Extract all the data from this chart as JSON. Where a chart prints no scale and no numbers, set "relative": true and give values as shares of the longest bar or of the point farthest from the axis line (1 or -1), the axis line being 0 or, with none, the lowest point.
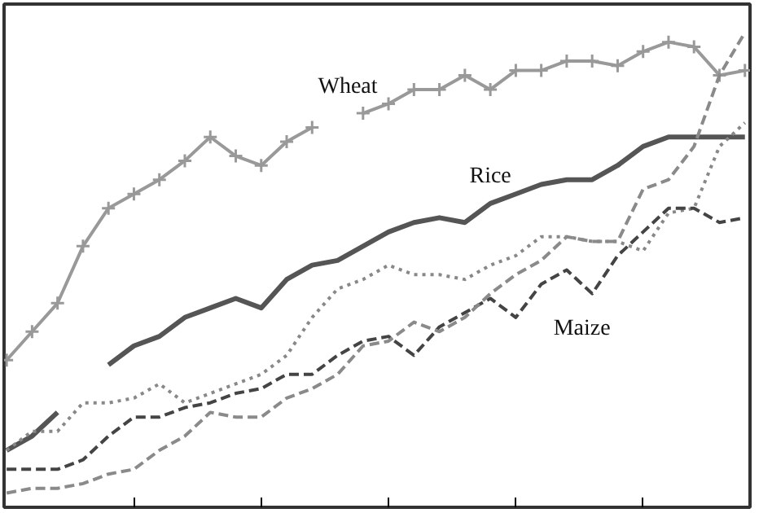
{
  "chart_data": {
    "type": "line",
    "relative": true,
    "categories": [
      null,
      null,
      null,
      null,
      null,
      null,
      null,
      null,
      null,
      null,
      null,
      null,
      null,
      null,
      null,
      null,
      null,
      null,
      null,
      null,
      null,
      null,
      null,
      null,
      null,
      null,
      null,
      null,
      null,
      null
    ],
    "series": [
      {
        "name": "Wheat",
        "color": "#999999",
        "marker": "cross",
        "line_style": "solid",
        "values": [
          0.31,
          0.37,
          0.43,
          0.55,
          0.63,
          0.66,
          0.69,
          0.73,
          0.78,
          0.74,
          0.72,
          0.77,
          0.8,
          null,
          0.83,
          0.85,
          0.88,
          0.88,
          0.91,
          0.88,
          0.92,
          0.92,
          0.94,
          0.94,
          0.93,
          0.96,
          0.98,
          0.97,
          0.91,
          0.92
        ]
      },
      {
        "name": "Rice",
        "color": "#555555",
        "line_style": "solid",
        "values": [
          0.12,
          0.15,
          0.2,
          null,
          0.3,
          0.34,
          0.36,
          0.4,
          0.42,
          0.44,
          0.42,
          0.48,
          0.51,
          0.52,
          0.55,
          0.58,
          0.6,
          0.61,
          0.6,
          0.64,
          0.66,
          0.68,
          0.69,
          0.69,
          0.72,
          0.76,
          0.78,
          0.78,
          0.78,
          0.78
        ]
      },
      {
        "color": "#888888",
        "line_style": "dotted",
        "values": [
          0.12,
          0.16,
          0.16,
          0.22,
          0.22,
          0.23,
          0.26,
          0.22,
          0.24,
          0.26,
          0.28,
          0.32,
          0.4,
          0.46,
          0.48,
          0.51,
          0.49,
          0.49,
          0.48,
          0.51,
          0.53,
          0.57,
          0.57,
          0.56,
          0.56,
          0.54,
          0.62,
          0.63,
          0.76,
          0.81
        ]
      },
      {
        "name": "Maize",
        "color": "#444444",
        "line_style": "dashed",
        "values": [
          0.08,
          0.08,
          0.08,
          0.1,
          0.15,
          0.19,
          0.19,
          0.21,
          0.22,
          0.24,
          0.25,
          0.28,
          0.28,
          0.32,
          0.35,
          0.36,
          0.32,
          0.38,
          0.41,
          0.44,
          0.4,
          0.47,
          0.5,
          0.45,
          0.53,
          0.58,
          0.63,
          0.63,
          0.6,
          0.61
        ]
      },
      {
        "color": "#8a8a8a",
        "line_style": "dashed",
        "values": [
          0.03,
          0.04,
          0.04,
          0.05,
          0.07,
          0.08,
          0.12,
          0.15,
          0.2,
          0.19,
          0.19,
          0.23,
          0.25,
          0.28,
          0.34,
          0.35,
          0.39,
          0.37,
          0.4,
          0.45,
          0.49,
          0.52,
          0.57,
          0.56,
          0.56,
          0.67,
          0.69,
          0.76,
          0.91,
          1
        ]
      }
    ]
  }
}
